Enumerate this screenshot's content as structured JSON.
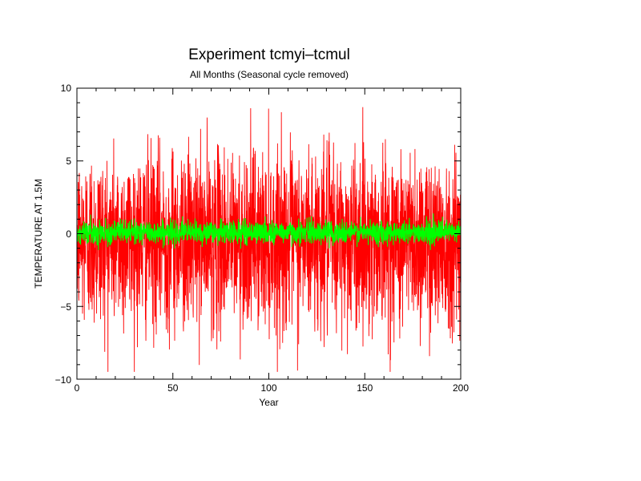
{
  "chart_data": {
    "type": "line",
    "title": "Experiment tcmyi–tcmul",
    "subtitle": "All Months (Seasonal cycle removed)",
    "xlabel": "Year",
    "ylabel": "TEMPERATURE AT 1.5M",
    "xlim": [
      0,
      200
    ],
    "ylim": [
      -10,
      10
    ],
    "xticks": [
      "0",
      "50",
      "100",
      "150",
      "200"
    ],
    "yticks": [
      "10",
      "5",
      "0",
      "−5",
      "−10"
    ],
    "grid": false,
    "legend": "none",
    "series": [
      {
        "color": "#ff0000",
        "description_values": "monthly anomalies, approx. 2400 points, fluctuating roughly between -9.5 and 8.7, dense core about -3 to 3",
        "envelope": {
          "min": -9.5,
          "max": 8.7
        }
      },
      {
        "color": "#00ff00",
        "description_values": "monthly anomalies, approx. 2400 points, fluctuating roughly between -1.3 and 1.4",
        "envelope": {
          "min": -1.3,
          "max": 1.4
        }
      }
    ]
  }
}
